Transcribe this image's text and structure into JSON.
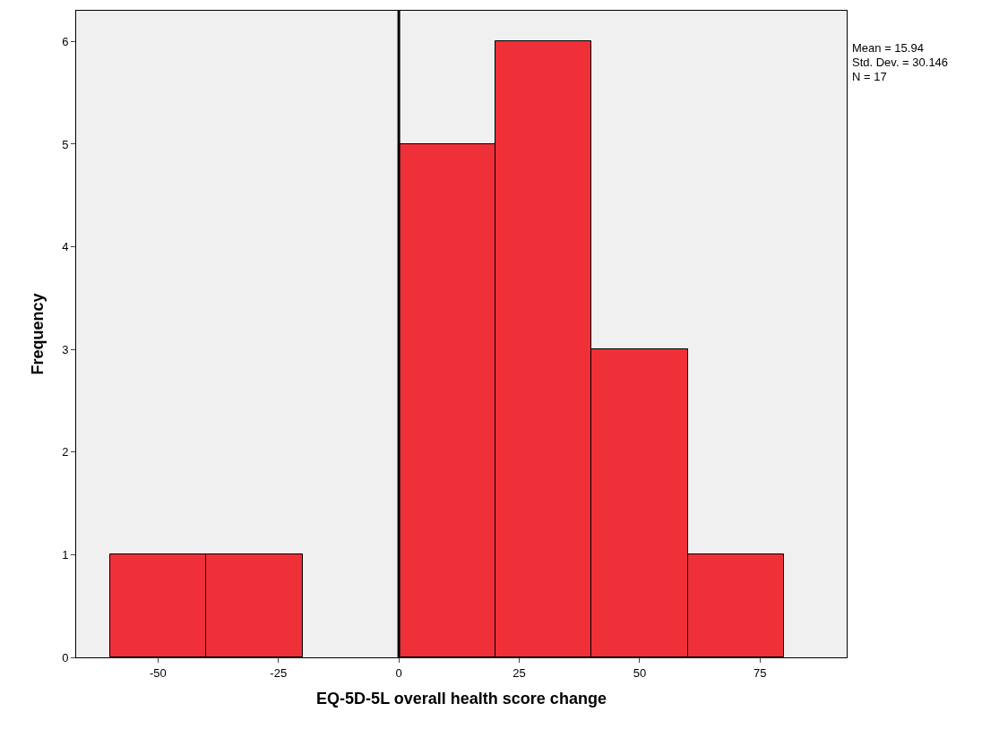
{
  "chart_data": {
    "type": "histogram",
    "xlabel": "EQ-5D-5L overall health score change",
    "ylabel": "Frequency",
    "bins": [
      -60,
      -40,
      -20,
      0,
      20,
      40,
      60,
      80
    ],
    "values": [
      1,
      1,
      0,
      5,
      6,
      3,
      1
    ],
    "color": "#ef3038",
    "xlim": [
      -67,
      93
    ],
    "xticks": [
      -50,
      -25,
      0,
      25,
      50,
      75
    ],
    "ylim": [
      0,
      6.3
    ],
    "yticks": [
      0,
      1,
      2,
      3,
      4,
      5,
      6
    ],
    "ref_lines": [
      {
        "axis": "x",
        "value": 0,
        "color": "#000000"
      }
    ],
    "annotations": [
      "Mean = 15.94",
      "Std. Dev. = 30.146",
      "N = 17"
    ]
  }
}
